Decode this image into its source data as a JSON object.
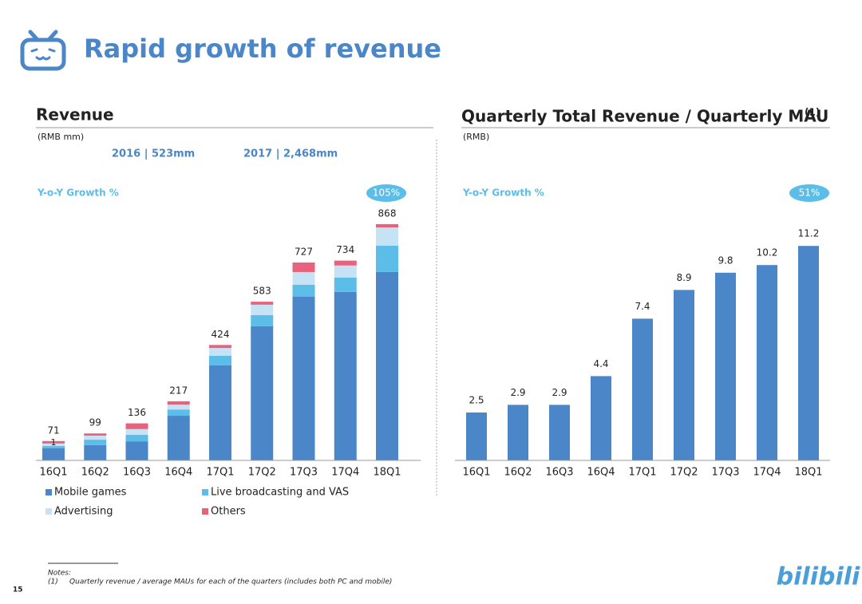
{
  "header": {
    "title": "Rapid growth of revenue"
  },
  "chart_data": [
    {
      "type": "stacked_bar",
      "title": "Revenue",
      "subtitle": "(RMB mm)",
      "highlights": [
        "2016 | 523mm",
        "2017 | 2,468mm"
      ],
      "growth_label": "Y-o-Y Growth %",
      "growth_value": "105%",
      "categories": [
        "16Q1",
        "16Q2",
        "16Q3",
        "16Q4",
        "17Q1",
        "17Q2",
        "17Q3",
        "17Q4",
        "18Q1"
      ],
      "series": [
        {
          "name": "Mobile games",
          "color": "#4a86c8",
          "values": [
            44,
            56,
            70,
            164,
            349,
            493,
            601,
            619,
            692
          ]
        },
        {
          "name": "Live broadcasting and VAS",
          "color": "#5bbde8",
          "values": [
            9,
            20,
            24,
            23,
            35,
            41,
            44,
            53,
            97
          ]
        },
        {
          "name": "Advertising",
          "color": "#c5e3f5",
          "values": [
            9,
            15,
            21,
            18,
            29,
            38,
            47,
            44,
            67
          ]
        },
        {
          "name": "Others",
          "color": "#e8617d",
          "values": [
            9,
            8,
            21,
            12,
            11,
            11,
            35,
            18,
            12
          ]
        }
      ],
      "totals": [
        71,
        99,
        136,
        217,
        424,
        583,
        727,
        734,
        868
      ],
      "annotation": "1",
      "ylim": [
        0,
        900
      ]
    },
    {
      "type": "bar",
      "title": "Quarterly Total Revenue / Quarterly MAU",
      "title_superscript": "(1)",
      "subtitle": "(RMB)",
      "growth_label": "Y-o-Y Growth %",
      "growth_value": "51%",
      "categories": [
        "16Q1",
        "16Q2",
        "16Q3",
        "16Q4",
        "17Q1",
        "17Q2",
        "17Q3",
        "17Q4",
        "18Q1"
      ],
      "values": [
        2.5,
        2.9,
        2.9,
        4.4,
        7.4,
        8.9,
        9.8,
        10.2,
        11.2
      ],
      "color": "#4a86c8",
      "ylim": [
        0,
        12
      ]
    }
  ],
  "footer": {
    "notes_heading": "Notes:",
    "note": "(1)     Quarterly revenue / average MAUs for each of the quarters (includes both PC and mobile)",
    "page": "15",
    "brand": "bilibili"
  }
}
